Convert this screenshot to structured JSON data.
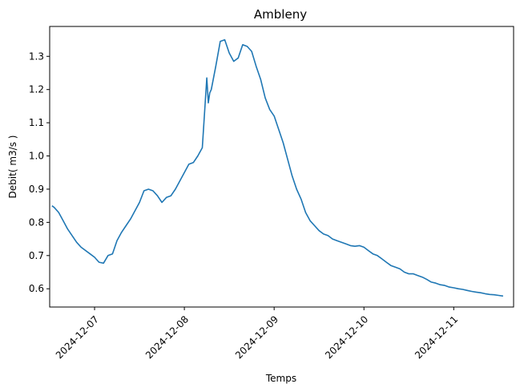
{
  "chart_data": {
    "type": "line",
    "title": "Ambleny",
    "xlabel": "Temps",
    "ylabel": "Debit( m3/s )",
    "x_axis_type": "date",
    "xlim": [
      "2024-12-06 12:00",
      "2024-12-11 16:00"
    ],
    "ylim": [
      0.545,
      1.39
    ],
    "x_ticks": [
      {
        "value": "2024-12-07 00:00",
        "label": "2024-12-07"
      },
      {
        "value": "2024-12-08 00:00",
        "label": "2024-12-08"
      },
      {
        "value": "2024-12-09 00:00",
        "label": "2024-12-09"
      },
      {
        "value": "2024-12-10 00:00",
        "label": "2024-12-10"
      },
      {
        "value": "2024-12-11 00:00",
        "label": "2024-12-11"
      }
    ],
    "y_ticks": [
      0.6,
      0.7,
      0.8,
      0.9,
      1.0,
      1.1,
      1.2,
      1.3
    ],
    "y_tick_labels": [
      "0.6",
      "0.7",
      "0.8",
      "0.9",
      "1.0",
      "1.1",
      "1.2",
      "1.3"
    ],
    "grid": false,
    "color": "#1f77b4",
    "series": [
      {
        "x": [
          "2024-12-06 12:36",
          "2024-12-06 13:12",
          "2024-12-06 14:24",
          "2024-12-06 15:36",
          "2024-12-06 16:48",
          "2024-12-06 18:00",
          "2024-12-06 19:12",
          "2024-12-06 20:24",
          "2024-12-06 22:48",
          "2024-12-07 00:00",
          "2024-12-07 01:12",
          "2024-12-07 02:24",
          "2024-12-07 03:36",
          "2024-12-07 04:48",
          "2024-12-07 06:00",
          "2024-12-07 07:12",
          "2024-12-07 08:24",
          "2024-12-07 09:36",
          "2024-12-07 10:48",
          "2024-12-07 12:00",
          "2024-12-07 13:12",
          "2024-12-07 14:24",
          "2024-12-07 15:36",
          "2024-12-07 16:48",
          "2024-12-07 18:00",
          "2024-12-07 19:12",
          "2024-12-07 20:24",
          "2024-12-07 21:36",
          "2024-12-07 22:48",
          "2024-12-08 00:00",
          "2024-12-08 01:12",
          "2024-12-08 02:24",
          "2024-12-08 03:36",
          "2024-12-08 04:48",
          "2024-12-08 06:00",
          "2024-12-08 06:24",
          "2024-12-08 06:36",
          "2024-12-08 06:48",
          "2024-12-08 07:12",
          "2024-12-08 08:24",
          "2024-12-08 09:36",
          "2024-12-08 10:48",
          "2024-12-08 12:00",
          "2024-12-08 13:12",
          "2024-12-08 14:24",
          "2024-12-08 15:36",
          "2024-12-08 16:48",
          "2024-12-08 18:00",
          "2024-12-08 19:12",
          "2024-12-08 20:24",
          "2024-12-08 21:36",
          "2024-12-08 22:48",
          "2024-12-09 00:00",
          "2024-12-09 01:12",
          "2024-12-09 02:24",
          "2024-12-09 03:36",
          "2024-12-09 04:48",
          "2024-12-09 06:00",
          "2024-12-09 07:12",
          "2024-12-09 08:24",
          "2024-12-09 09:36",
          "2024-12-09 10:48",
          "2024-12-09 12:00",
          "2024-12-09 13:12",
          "2024-12-09 14:24",
          "2024-12-09 15:36",
          "2024-12-09 16:48",
          "2024-12-09 18:00",
          "2024-12-09 19:12",
          "2024-12-09 20:24",
          "2024-12-09 21:36",
          "2024-12-09 22:48",
          "2024-12-10 00:00",
          "2024-12-10 01:12",
          "2024-12-10 02:24",
          "2024-12-10 03:36",
          "2024-12-10 04:48",
          "2024-12-10 06:00",
          "2024-12-10 07:12",
          "2024-12-10 08:24",
          "2024-12-10 09:36",
          "2024-12-10 10:48",
          "2024-12-10 12:00",
          "2024-12-10 13:12",
          "2024-12-10 14:24",
          "2024-12-10 15:36",
          "2024-12-10 16:48",
          "2024-12-10 18:00",
          "2024-12-10 19:12",
          "2024-12-10 20:24",
          "2024-12-10 21:36",
          "2024-12-10 22:48",
          "2024-12-11 00:00",
          "2024-12-11 01:12",
          "2024-12-11 02:24",
          "2024-12-11 03:36",
          "2024-12-11 04:48",
          "2024-12-11 06:00",
          "2024-12-11 07:12",
          "2024-12-11 08:24",
          "2024-12-11 09:36",
          "2024-12-11 10:48",
          "2024-12-11 12:00",
          "2024-12-11 13:12"
        ],
        "y": [
          0.85,
          0.845,
          0.83,
          0.805,
          0.78,
          0.76,
          0.74,
          0.725,
          0.705,
          0.695,
          0.68,
          0.677,
          0.7,
          0.705,
          0.745,
          0.77,
          0.79,
          0.81,
          0.835,
          0.86,
          0.895,
          0.9,
          0.895,
          0.88,
          0.86,
          0.875,
          0.88,
          0.9,
          0.925,
          0.95,
          0.975,
          0.98,
          1.0,
          1.025,
          1.235,
          1.16,
          1.175,
          1.19,
          1.2,
          1.27,
          1.345,
          1.35,
          1.31,
          1.285,
          1.295,
          1.335,
          1.33,
          1.315,
          1.27,
          1.23,
          1.175,
          1.14,
          1.12,
          1.08,
          1.04,
          0.99,
          0.94,
          0.9,
          0.87,
          0.83,
          0.805,
          0.79,
          0.775,
          0.765,
          0.76,
          0.75,
          0.745,
          0.74,
          0.735,
          0.73,
          0.728,
          0.73,
          0.725,
          0.715,
          0.705,
          0.7,
          0.69,
          0.68,
          0.67,
          0.665,
          0.66,
          0.65,
          0.645,
          0.645,
          0.64,
          0.635,
          0.628,
          0.62,
          0.617,
          0.612,
          0.61,
          0.605,
          0.603,
          0.6,
          0.598,
          0.595,
          0.592,
          0.59,
          0.588,
          0.585,
          0.583,
          0.582,
          0.58,
          0.578
        ]
      }
    ]
  }
}
